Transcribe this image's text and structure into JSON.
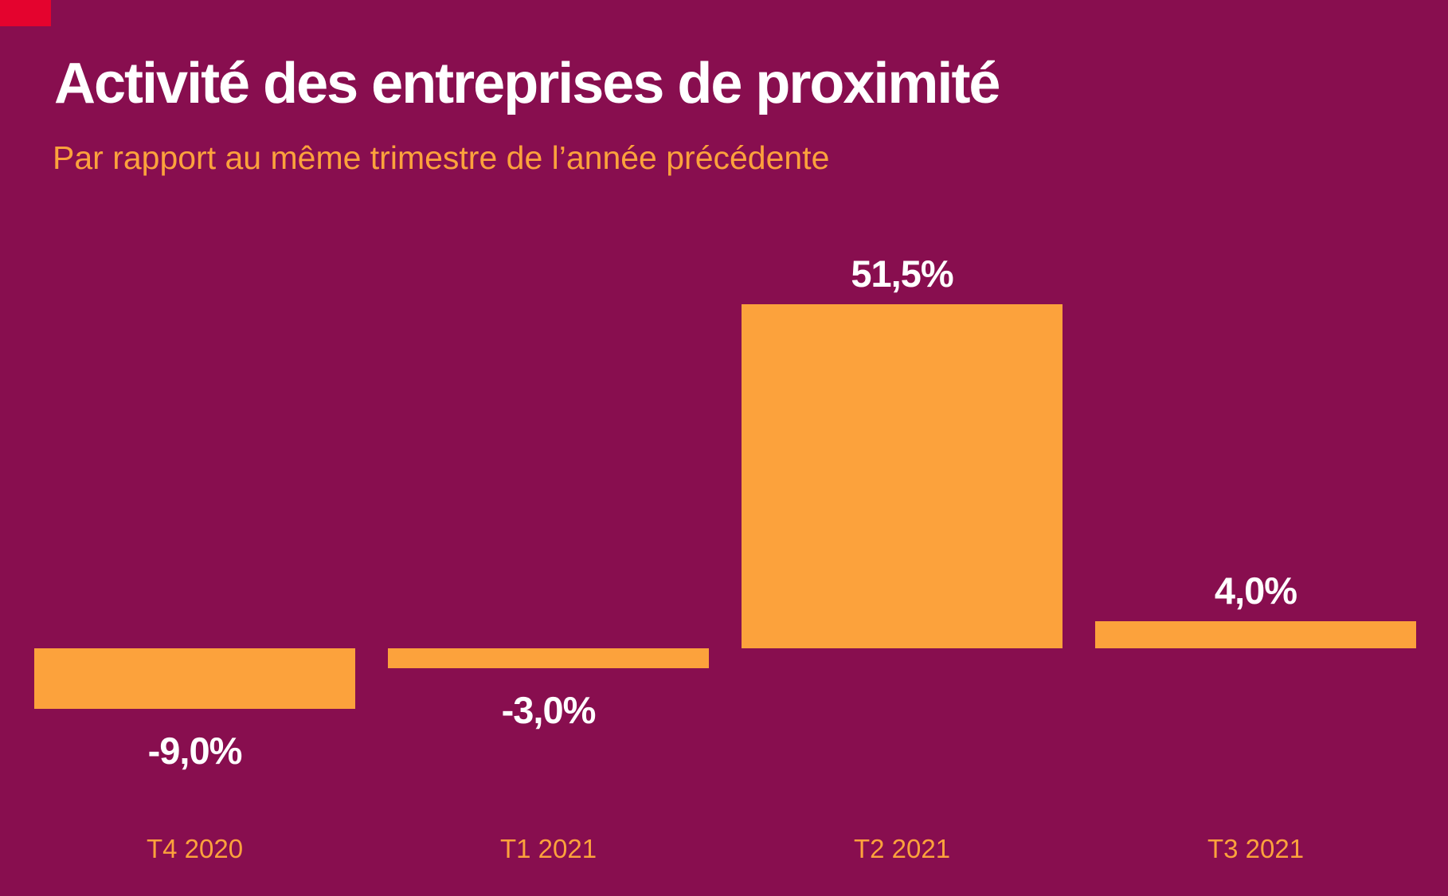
{
  "header": {
    "title": "Activité des entreprises de proximité",
    "subtitle": "Par rapport au même trimestre de l’année précédente",
    "brand_block_color": "#E4032E"
  },
  "chart_data": {
    "type": "bar",
    "title": "Activité des entreprises de proximité",
    "subtitle": "Par rapport au même trimestre de l’année précédente",
    "categories": [
      "T4 2020",
      "T1 2021",
      "T2 2021",
      "T3 2021"
    ],
    "values": [
      -9.0,
      -3.0,
      51.5,
      4.0
    ],
    "value_labels": [
      "-9,0%",
      "-3,0%",
      "51,5%",
      "4,0%"
    ],
    "xlabel": "",
    "ylabel": "",
    "ylim": [
      -9.0,
      51.5
    ],
    "grid": false,
    "legend": false,
    "baseline": 0,
    "colors": {
      "background": "#880E4F",
      "bar": "#FCA23C",
      "title_text": "#FFFFFF",
      "subtitle_text": "#FCA23C",
      "value_label_text": "#FFFFFF",
      "axis_label_text": "#FCA23C"
    }
  }
}
